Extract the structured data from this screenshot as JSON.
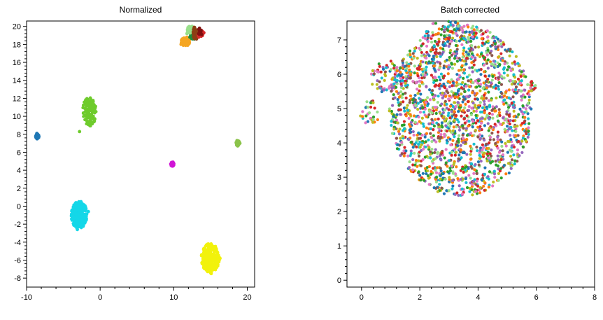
{
  "chart_data": [
    {
      "type": "scatter",
      "title": "Normalized",
      "xlabel": "",
      "ylabel": "",
      "xlim": [
        -10,
        21
      ],
      "ylim": [
        -9,
        20.6
      ],
      "xticks": [
        -10,
        0,
        10,
        20
      ],
      "yticks": [
        -8,
        -6,
        -4,
        -2,
        0,
        2,
        4,
        6,
        8,
        10,
        12,
        14,
        16,
        18,
        20
      ],
      "grid": false,
      "clusters": [
        {
          "color": "#f5a623",
          "points": [
            [
              11.2,
              18.2
            ],
            [
              11.5,
              18.5
            ],
            [
              11.8,
              18.8
            ],
            [
              12.0,
              18.1
            ],
            [
              11.3,
              17.9
            ],
            [
              11.0,
              18.0
            ],
            [
              11.6,
              18.3
            ],
            [
              12.2,
              18.6
            ],
            [
              11.9,
              17.9
            ],
            [
              11.4,
              18.7
            ]
          ]
        },
        {
          "color": "#1f8a3a",
          "points": [
            [
              12.2,
              18.8
            ],
            [
              12.6,
              19.3
            ],
            [
              12.9,
              19.0
            ],
            [
              12.4,
              19.6
            ],
            [
              12.8,
              18.6
            ]
          ]
        },
        {
          "color": "#98df8a",
          "points": [
            [
              12.0,
              19.5
            ],
            [
              12.3,
              19.8
            ],
            [
              11.8,
              19.2
            ],
            [
              12.5,
              20.0
            ]
          ]
        },
        {
          "color": "#d62728",
          "points": [
            [
              13.2,
              19.2
            ],
            [
              13.6,
              19.5
            ],
            [
              13.9,
              19.0
            ],
            [
              13.4,
              18.8
            ],
            [
              13.0,
              19.6
            ],
            [
              14.1,
              19.3
            ]
          ]
        },
        {
          "color": "#7f1010",
          "points": [
            [
              13.5,
              19.8
            ],
            [
              13.8,
              19.1
            ],
            [
              13.3,
              19.4
            ]
          ]
        },
        {
          "color": "#8c3e14",
          "points": [
            [
              12.8,
              19.9
            ],
            [
              13.1,
              18.6
            ],
            [
              12.7,
              19.2
            ]
          ]
        },
        {
          "color": "#6ecb2c",
          "points": [
            [
              -1.8,
              10.3
            ],
            [
              -1.5,
              10.8
            ],
            [
              -1.2,
              11.2
            ],
            [
              -1.0,
              10.5
            ],
            [
              -1.6,
              10.0
            ],
            [
              -1.3,
              11.5
            ],
            [
              -0.9,
              10.9
            ],
            [
              -1.7,
              10.6
            ],
            [
              -1.4,
              10.2
            ],
            [
              -1.1,
              11.0
            ],
            [
              -2.8,
              8.3
            ]
          ]
        },
        {
          "color": "#1f77b4",
          "points": [
            [
              -8.6,
              7.5
            ],
            [
              -8.5,
              7.8
            ],
            [
              -8.6,
              8.1
            ],
            [
              -8.5,
              7.6
            ],
            [
              -8.6,
              7.9
            ]
          ]
        },
        {
          "color": "#8bc34a",
          "points": [
            [
              18.5,
              7.1
            ],
            [
              18.8,
              6.9
            ],
            [
              18.6,
              7.3
            ],
            [
              19.0,
              7.0
            ],
            [
              18.7,
              6.7
            ]
          ]
        },
        {
          "color": "#d016d6",
          "points": [
            [
              9.6,
              4.7
            ],
            [
              9.8,
              4.5
            ],
            [
              9.9,
              4.9
            ],
            [
              9.7,
              4.6
            ],
            [
              10.0,
              4.7
            ]
          ]
        },
        {
          "color": "#14d7e8",
          "points": [
            [
              -3.5,
              -0.3
            ],
            [
              -3.0,
              -0.8
            ],
            [
              -2.6,
              -1.2
            ],
            [
              -3.2,
              -1.6
            ],
            [
              -2.8,
              -0.5
            ],
            [
              -3.6,
              -1.0
            ],
            [
              -2.4,
              -1.8
            ],
            [
              -3.1,
              -2.2
            ],
            [
              -2.7,
              -0.2
            ],
            [
              -3.3,
              -1.4
            ],
            [
              -2.2,
              -0.9
            ],
            [
              -3.8,
              -0.6
            ],
            [
              -2.9,
              -2.0
            ],
            [
              -2.5,
              -0.6
            ],
            [
              -3.0,
              -1.1
            ],
            [
              -2.0,
              -0.5
            ],
            [
              -3.4,
              0.1
            ],
            [
              -2.6,
              0.5
            ],
            [
              -3.1,
              -2.6
            ],
            [
              -1.6,
              -0.6
            ]
          ]
        },
        {
          "color": "#f2f20c",
          "points": [
            [
              14.8,
              -5.2
            ],
            [
              15.2,
              -5.8
            ],
            [
              14.5,
              -6.3
            ],
            [
              15.6,
              -6.0
            ],
            [
              15.0,
              -4.8
            ],
            [
              14.2,
              -5.6
            ],
            [
              15.8,
              -5.4
            ],
            [
              14.6,
              -7.0
            ],
            [
              15.3,
              -6.8
            ],
            [
              14.0,
              -6.0
            ],
            [
              15.5,
              -4.5
            ],
            [
              14.7,
              -4.2
            ],
            [
              16.0,
              -6.5
            ],
            [
              14.3,
              -5.0
            ],
            [
              15.1,
              -7.5
            ],
            [
              13.8,
              -5.4
            ],
            [
              16.3,
              -5.8
            ],
            [
              14.9,
              -6.1
            ],
            [
              15.4,
              -5.3
            ],
            [
              14.4,
              -6.6
            ]
          ]
        }
      ]
    },
    {
      "type": "scatter",
      "title": "Batch corrected",
      "xlabel": "",
      "ylabel": "",
      "xlim": [
        -0.5,
        8
      ],
      "ylim": [
        -0.2,
        7.55
      ],
      "xticks": [
        0,
        2,
        4,
        6,
        8
      ],
      "yticks": [
        0,
        1,
        2,
        3,
        4,
        5,
        6,
        7
      ],
      "grid": false,
      "colors": [
        "#1f77b4",
        "#ff7f0e",
        "#2ca02c",
        "#d62728",
        "#9467bd",
        "#8c564b",
        "#17becf",
        "#bcbd22",
        "#e377c2",
        "#98df8a"
      ],
      "clouds": [
        {
          "center": [
            3.4,
            4.95
          ],
          "radii": [
            2.45,
            2.5
          ],
          "count": 1800,
          "seed": 7
        },
        {
          "center": [
            1.0,
            5.9
          ],
          "radii": [
            0.7,
            0.5
          ],
          "count": 80,
          "seed": 11
        },
        {
          "center": [
            3.1,
            7.2
          ],
          "radii": [
            0.9,
            0.4
          ],
          "count": 70,
          "seed": 13
        },
        {
          "center": [
            0.3,
            4.85
          ],
          "radii": [
            0.35,
            0.4
          ],
          "count": 30,
          "seed": 17
        },
        {
          "center": [
            5.85,
            5.65
          ],
          "radii": [
            0.12,
            0.15
          ],
          "count": 14,
          "seed": 19
        }
      ]
    }
  ]
}
